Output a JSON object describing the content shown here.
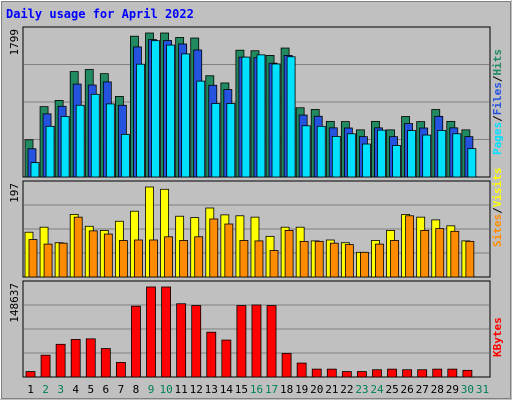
{
  "chart_data": {
    "type": "bar",
    "title": "Daily usage for April 2022",
    "categories": [
      "1",
      "2",
      "3",
      "4",
      "5",
      "6",
      "7",
      "8",
      "9",
      "10",
      "11",
      "12",
      "13",
      "14",
      "15",
      "16",
      "17",
      "18",
      "19",
      "20",
      "21",
      "22",
      "23",
      "24",
      "25",
      "26",
      "27",
      "28",
      "29",
      "30",
      "31"
    ],
    "weekend_days": [
      "2",
      "3",
      "9",
      "10",
      "16",
      "17",
      "23",
      "24",
      "30",
      "31"
    ],
    "panels": [
      {
        "id": "top",
        "ymax_label": "1799",
        "ylim": [
          0,
          1799
        ],
        "series": [
          {
            "name": "Hits",
            "color": "#218a60",
            "values": [
              465,
              879,
              957,
              1317,
              1343,
              1291,
              1007,
              1759,
              1799,
              1799,
              1743,
              1736,
              1265,
              1175,
              1584,
              1577,
              1519,
              1611,
              865,
              844,
              695,
              692,
              589,
              695,
              589,
              756,
              692,
              843,
              695,
              589,
              null
            ]
          },
          {
            "name": "Files",
            "color": "#2453e0",
            "values": [
              353,
              789,
              883,
              1161,
              1149,
              1188,
              896,
              1625,
              1716,
              1705,
              1662,
              1587,
              1146,
              1093,
              1497,
              1490,
              1422,
              1519,
              774,
              759,
              614,
              612,
              504,
              614,
              504,
              668,
              612,
              758,
              614,
              504,
              null
            ]
          },
          {
            "name": "Pages",
            "color": "#00e0ff",
            "values": [
              180,
              633,
              756,
              896,
              1033,
              913,
              533,
              1409,
              1703,
              1648,
              1538,
              1198,
              918,
              918,
              1498,
              1526,
              1412,
              1502,
              640,
              633,
              507,
              540,
              412,
              585,
              394,
              580,
              524,
              581,
              540,
              354,
              null
            ]
          }
        ],
        "legend": [
          "Pages",
          "Files",
          "Hits"
        ]
      },
      {
        "id": "middle",
        "ymax_label": "197",
        "ylim": [
          0,
          197
        ],
        "series": [
          {
            "name": "Visits",
            "color": "#ffff00",
            "values": [
              98,
              109,
              75,
              137,
              111,
              102,
              122,
              144,
              197,
              192,
              133,
              130,
              151,
              136,
              134,
              131,
              89,
              109,
              109,
              79,
              81,
              75,
              54,
              80,
              102,
              137,
              131,
              125,
              112,
              79,
              null
            ]
          },
          {
            "name": "Sites",
            "color": "#ff8c00",
            "values": [
              82,
              72,
              74,
              131,
              101,
              94,
              80,
              81,
              81,
              88,
              80,
              88,
              127,
              116,
              80,
              79,
              58,
              102,
              78,
              78,
              74,
              71,
              54,
              72,
              80,
              134,
              102,
              106,
              100,
              78,
              null
            ]
          }
        ],
        "legend": [
          "Sites",
          "Visits"
        ]
      },
      {
        "id": "bottom",
        "ymax_label": "148637",
        "ylim": [
          0,
          148637
        ],
        "series": [
          {
            "name": "KBytes",
            "color": "#ff0000",
            "values": [
              9000,
              36000,
              54000,
              62000,
              63000,
              47000,
              24000,
              117000,
              148637,
              148637,
              121000,
              118000,
              74000,
              61000,
              118000,
              119000,
              118000,
              39000,
              23000,
              13000,
              13000,
              9000,
              9000,
              12000,
              13000,
              12000,
              12000,
              13000,
              13000,
              11000,
              null
            ]
          }
        ],
        "legend": [
          "KBytes"
        ]
      }
    ],
    "colors": {
      "background": "#c0c0c0",
      "title": "#0000ff",
      "weekday_label": "#000000",
      "weekend_label": "#00805a",
      "gridline": "#808080",
      "separator": "#000000"
    }
  }
}
